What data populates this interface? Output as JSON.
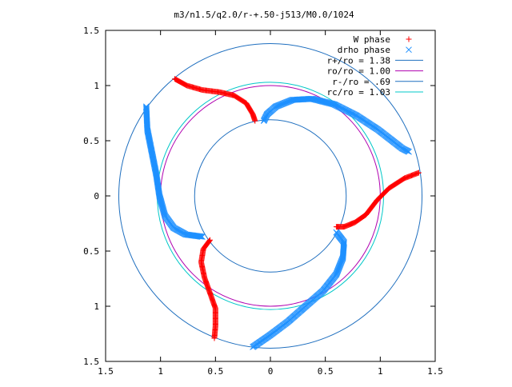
{
  "chart_data": {
    "type": "scatter",
    "title": "m3/n1.5/q2.0/r-+.50-j513/M0.0/1024",
    "xlabel": "",
    "ylabel": "",
    "xlim": [
      -1.5,
      1.5
    ],
    "ylim": [
      -1.5,
      1.5
    ],
    "xticks": [
      -1.5,
      -1,
      -0.5,
      0,
      0.5,
      1,
      1.5
    ],
    "xtick_labels": [
      "1.5",
      "1",
      "0.5",
      "0",
      "0.5",
      "1",
      "1.5"
    ],
    "yticks": [
      -1.5,
      -1,
      -0.5,
      0,
      0.5,
      1,
      1.5
    ],
    "ytick_labels": [
      "1.5",
      "1",
      "0.5",
      "0",
      "0.5",
      "1",
      "1.5"
    ],
    "grid": false,
    "legend_position": "top-right",
    "circles": [
      {
        "name": "r+/ro = 1.38",
        "radius": 1.38,
        "color": "#1f6fbf"
      },
      {
        "name": "ro/ro = 1.00",
        "radius": 1.0,
        "color": "#b000b0"
      },
      {
        "name": "r-/ro = .69",
        "radius": 0.69,
        "color": "#1f6fbf"
      },
      {
        "name": "rc/ro = 1.03",
        "radius": 1.03,
        "color": "#00c8c8"
      }
    ],
    "series": [
      {
        "name": "W phase",
        "marker": "+",
        "color": "#ff0000",
        "arms": [
          [
            [
              -0.87,
              1.06
            ],
            [
              -0.76,
              1.0
            ],
            [
              -0.62,
              0.96
            ],
            [
              -0.46,
              0.94
            ],
            [
              -0.33,
              0.91
            ],
            [
              -0.22,
              0.84
            ],
            [
              -0.16,
              0.74
            ],
            [
              -0.14,
              0.68
            ]
          ],
          [
            [
              1.35,
              0.21
            ],
            [
              1.22,
              0.16
            ],
            [
              1.08,
              0.07
            ],
            [
              0.97,
              -0.04
            ],
            [
              0.87,
              -0.17
            ],
            [
              0.77,
              -0.24
            ],
            [
              0.67,
              -0.28
            ],
            [
              0.6,
              -0.28
            ]
          ],
          [
            [
              -0.51,
              -1.29
            ],
            [
              -0.5,
              -1.18
            ],
            [
              -0.5,
              -1.02
            ],
            [
              -0.55,
              -0.88
            ],
            [
              -0.6,
              -0.74
            ],
            [
              -0.63,
              -0.6
            ],
            [
              -0.61,
              -0.48
            ],
            [
              -0.55,
              -0.4
            ]
          ]
        ]
      },
      {
        "name": "drho phase",
        "marker": "x",
        "color": "#1e90ff",
        "arms": [
          [
            [
              -0.06,
              0.68
            ],
            [
              -0.03,
              0.74
            ],
            [
              0.05,
              0.81
            ],
            [
              0.2,
              0.87
            ],
            [
              0.38,
              0.88
            ],
            [
              0.58,
              0.83
            ],
            [
              0.78,
              0.73
            ],
            [
              0.98,
              0.6
            ],
            [
              1.2,
              0.43
            ],
            [
              1.26,
              0.4
            ]
          ],
          [
            [
              -1.13,
              0.81
            ],
            [
              -1.12,
              0.6
            ],
            [
              -1.08,
              0.4
            ],
            [
              -1.04,
              0.2
            ],
            [
              -1.01,
              0.0
            ],
            [
              -0.96,
              -0.18
            ],
            [
              -0.88,
              -0.29
            ],
            [
              -0.77,
              -0.35
            ],
            [
              -0.62,
              -0.37
            ]
          ],
          [
            [
              -0.16,
              -1.37
            ],
            [
              0.0,
              -1.26
            ],
            [
              0.16,
              -1.14
            ],
            [
              0.32,
              -1.0
            ],
            [
              0.48,
              -0.86
            ],
            [
              0.6,
              -0.71
            ],
            [
              0.66,
              -0.56
            ],
            [
              0.67,
              -0.42
            ],
            [
              0.6,
              -0.33
            ]
          ]
        ]
      }
    ]
  }
}
